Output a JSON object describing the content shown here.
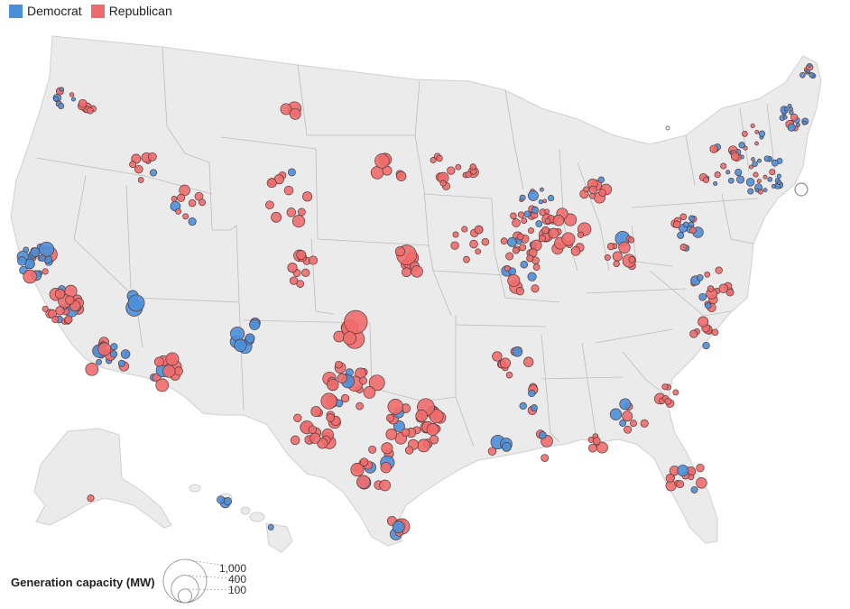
{
  "legend": {
    "items": [
      {
        "label": "Democrat",
        "color": "#4a90d9"
      },
      {
        "label": "Republican",
        "color": "#ef6b6b"
      }
    ]
  },
  "size_legend": {
    "title": "Generation capacity (MW)",
    "entries": [
      {
        "label": "1,000",
        "mw": 1000
      },
      {
        "label": "400",
        "mw": 400
      },
      {
        "label": "100",
        "mw": 100
      }
    ]
  },
  "colors": {
    "land": "#ebebeb",
    "border": "#b8b8b8",
    "bubble_stroke": "#5a3a3a",
    "unknown": "#ffffff"
  }
}
